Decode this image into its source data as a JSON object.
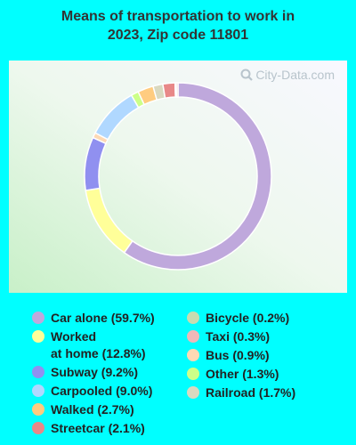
{
  "chart_data": {
    "type": "pie",
    "title": "Means of transportation to work in 2023, Zip code 11801",
    "title_lines": [
      "Means of transportation to work in",
      "2023, Zip code 11801"
    ],
    "watermark": "City-Data.com",
    "slices": [
      {
        "label": "Car alone (59.7%)",
        "value": 59.7,
        "color": "#bfa8dc"
      },
      {
        "label": "Worked\nat home (12.8%)",
        "value": 12.8,
        "color": "#ffff99"
      },
      {
        "label": "Subway (9.2%)",
        "value": 9.2,
        "color": "#9090f0"
      },
      {
        "label": "Bus (0.9%)",
        "value": 0.9,
        "color": "#fdd9b4"
      },
      {
        "label": "Carpooled (9.0%)",
        "value": 9.0,
        "color": "#b0d8ff"
      },
      {
        "label": "Other (1.3%)",
        "value": 1.3,
        "color": "#ccff88"
      },
      {
        "label": "Walked (2.7%)",
        "value": 2.7,
        "color": "#ffcc80"
      },
      {
        "label": "Railroad (1.7%)",
        "value": 1.7,
        "color": "#d9d9c0"
      },
      {
        "label": "Streetcar (2.1%)",
        "value": 2.1,
        "color": "#e88888"
      },
      {
        "label": "Bicycle (0.2%)",
        "value": 0.2,
        "color": "#c8dcb0"
      },
      {
        "label": "Taxi (0.3%)",
        "value": 0.3,
        "color": "#f0b8b8"
      }
    ],
    "legend_col1": [
      0,
      1,
      2,
      4,
      6,
      8
    ],
    "legend_col2": [
      9,
      10,
      3,
      5,
      7
    ]
  }
}
